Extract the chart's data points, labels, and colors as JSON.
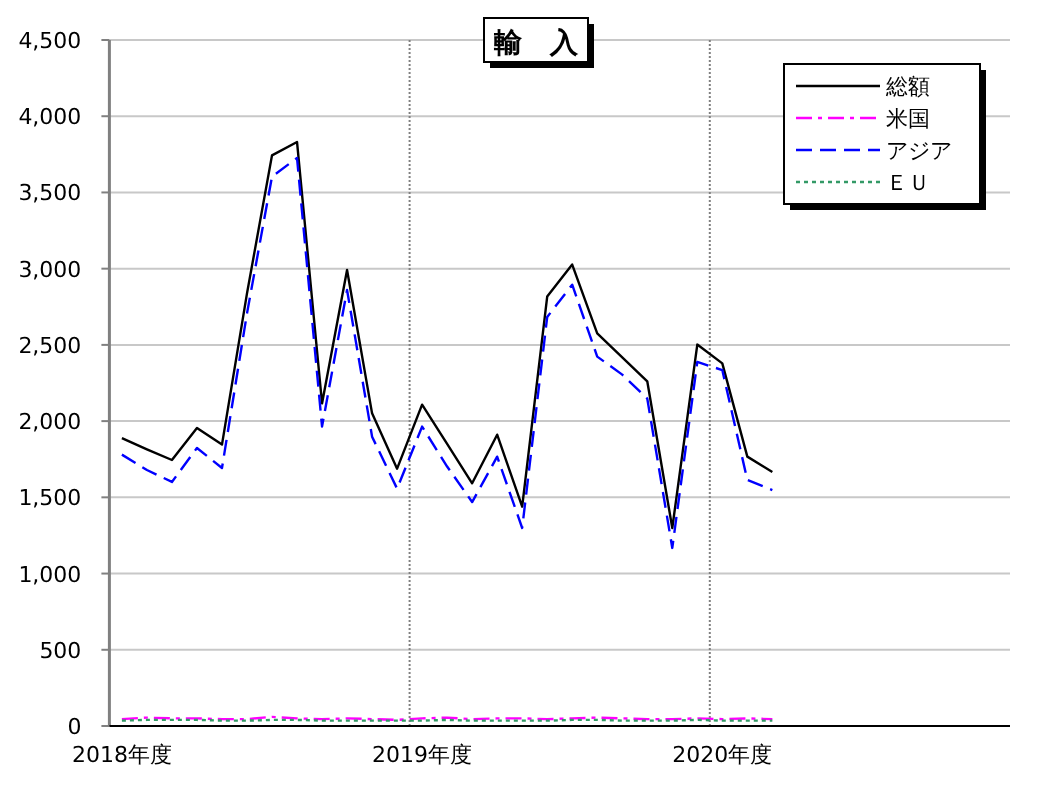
{
  "chart_data": {
    "type": "line",
    "title": "輸　入",
    "categories": [
      "2018年度",
      null,
      null,
      null,
      null,
      null,
      null,
      null,
      null,
      null,
      null,
      null,
      "2019年度",
      null,
      null,
      null,
      null,
      null,
      null,
      null,
      null,
      null,
      null,
      null,
      "2020年度",
      null,
      null,
      null,
      null,
      null,
      null,
      null,
      null,
      null,
      null,
      null
    ],
    "series": [
      {
        "name": "総額",
        "color": "#000000",
        "line_style": "solid",
        "values": [
          1889,
          1815,
          1745,
          1955,
          1846,
          2838,
          3743,
          3831,
          2116,
          2991,
          2051,
          1688,
          2108,
          1850,
          1592,
          1911,
          1439,
          2817,
          3027,
          2576,
          2418,
          2261,
          1299,
          2502,
          2379,
          1767,
          1666,
          null,
          null,
          null,
          null,
          null,
          null,
          null,
          null,
          null
        ]
      },
      {
        "name": "米国",
        "color": "#ff00ff",
        "line_style": "dashdot",
        "values": [
          45,
          55,
          50,
          50,
          45,
          45,
          60,
          50,
          45,
          50,
          45,
          40,
          50,
          55,
          45,
          50,
          50,
          45,
          50,
          55,
          50,
          45,
          45,
          50,
          45,
          50,
          45,
          null,
          null,
          null,
          null,
          null,
          null,
          null,
          null,
          null
        ]
      },
      {
        "name": "アジア",
        "color": "#0000ff",
        "line_style": "dashed",
        "values": [
          1780,
          1679,
          1601,
          1824,
          1692,
          2707,
          3604,
          3726,
          1964,
          2860,
          1898,
          1557,
          1964,
          1702,
          1469,
          1767,
          1299,
          2683,
          2895,
          2423,
          2305,
          2148,
          1168,
          2388,
          2335,
          1614,
          1548,
          null,
          null,
          null,
          null,
          null,
          null,
          null,
          null,
          null
        ]
      },
      {
        "name": "ＥＵ",
        "color": "#339966",
        "line_style": "dotted",
        "values": [
          35,
          40,
          40,
          40,
          35,
          35,
          40,
          40,
          35,
          35,
          35,
          35,
          35,
          40,
          35,
          35,
          35,
          35,
          40,
          40,
          35,
          35,
          35,
          40,
          35,
          35,
          35,
          null,
          null,
          null,
          null,
          null,
          null,
          null,
          null,
          null
        ]
      }
    ],
    "ylim": [
      0,
      4500
    ],
    "yticks": [
      {
        "value": 0,
        "label": "0"
      },
      {
        "value": 500,
        "label": "500"
      },
      {
        "value": 1000,
        "label": "1,000"
      },
      {
        "value": 1500,
        "label": "1,500"
      },
      {
        "value": 2000,
        "label": "2,000"
      },
      {
        "value": 2500,
        "label": "2,500"
      },
      {
        "value": 3000,
        "label": "3,000"
      },
      {
        "value": 3500,
        "label": "3,500"
      },
      {
        "value": 4000,
        "label": "4,000"
      },
      {
        "value": 4500,
        "label": "4,500"
      }
    ],
    "grid": true,
    "legend": "top right",
    "marker": "none"
  }
}
